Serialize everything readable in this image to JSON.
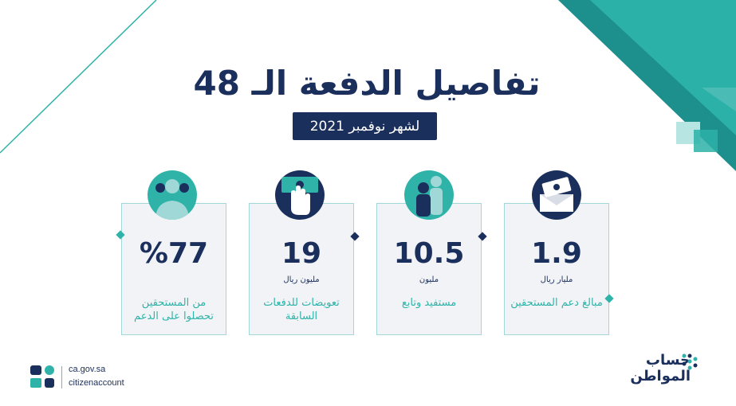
{
  "title": "تفاصيل الدفعة الـ 48",
  "subtitle": "لشهر نوفمبر 2021",
  "cards": [
    {
      "value": "1.9",
      "unit": "مليار ريال",
      "label": "مبالغ دعم المستحقين",
      "icon": "money-envelope-icon"
    },
    {
      "value": "10.5",
      "unit": "مليون",
      "label": "مستفيد وتابع",
      "icon": "family-icon"
    },
    {
      "value": "19",
      "unit": "مليون ريال",
      "label": "تعويضات للدفعات السابقة",
      "icon": "hand-cash-icon"
    },
    {
      "value": "%77",
      "unit": "",
      "label": "من المستحقين تحصلوا على الدعم",
      "icon": "people-group-icon"
    }
  ],
  "footer": {
    "website": "ca.gov.sa",
    "handle": "citizenaccount"
  },
  "brand": {
    "line1": "حساب",
    "line2": "المواطن"
  },
  "colors": {
    "navy": "#1b2f5c",
    "teal": "#2fb3a8",
    "light_teal": "#9fd8d6",
    "card_bg": "#f1f3f6"
  }
}
